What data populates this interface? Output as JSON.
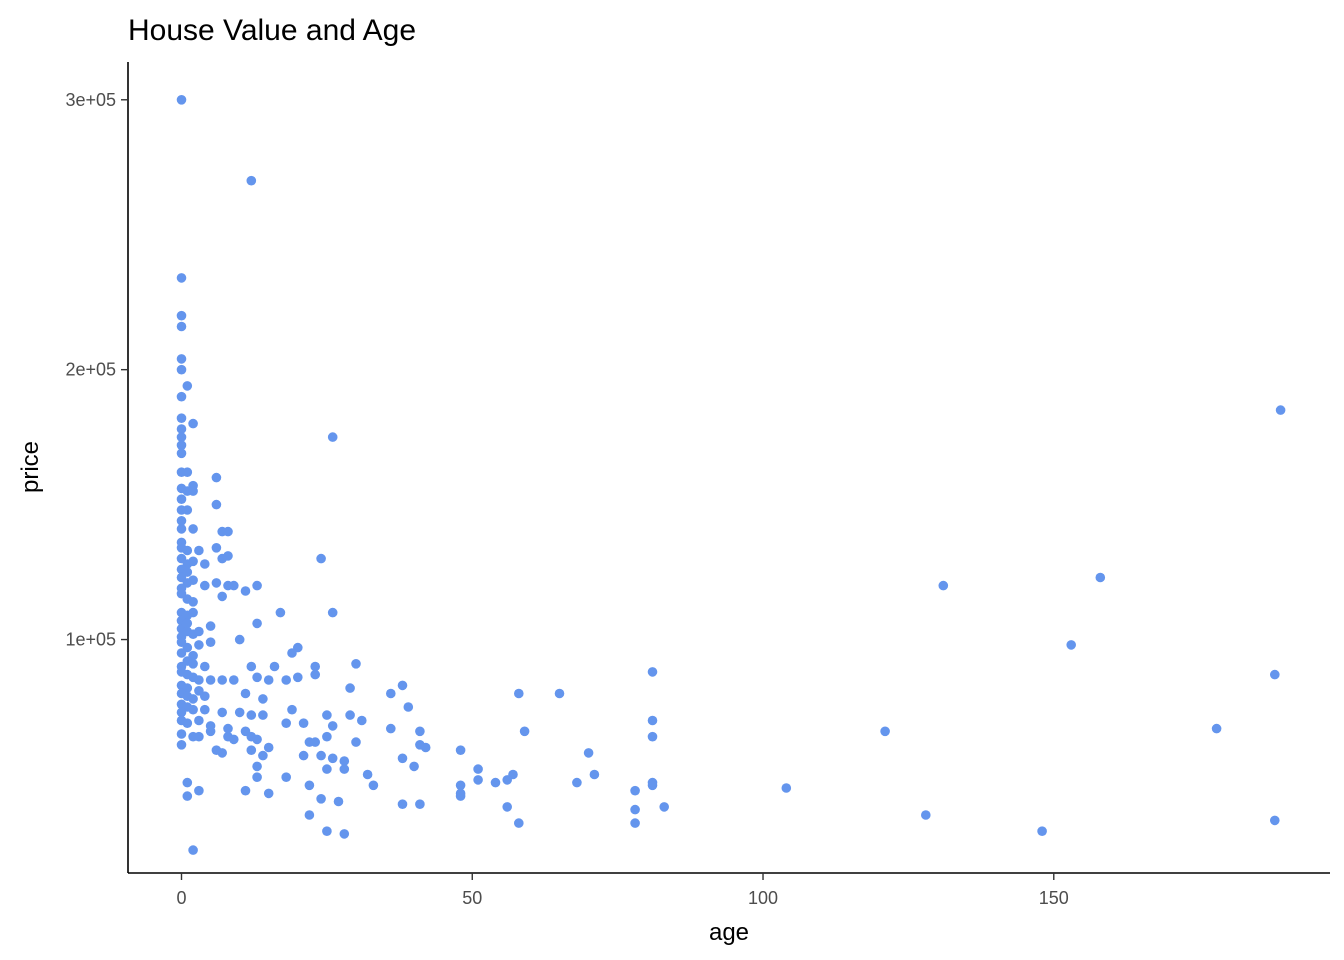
{
  "chart_data": {
    "type": "scatter",
    "title": "House Value and Age",
    "xlabel": "age",
    "ylabel": "price",
    "xlim": [
      -9.2,
      197.5
    ],
    "ylim": [
      13500,
      314000
    ],
    "x_ticks": [
      0,
      50,
      100,
      150
    ],
    "y_ticks": [
      100000,
      200000,
      300000
    ],
    "x_tick_labels": [
      "0",
      "50",
      "100",
      "150"
    ],
    "y_tick_labels": [
      "1e+05",
      "2e+05",
      "3e+05"
    ],
    "grid": false,
    "point_color": "#6495ED",
    "points": [
      [
        0,
        300000
      ],
      [
        12,
        270000
      ],
      [
        0,
        234000
      ],
      [
        0,
        220000
      ],
      [
        0,
        216000
      ],
      [
        0,
        204000
      ],
      [
        0,
        200000
      ],
      [
        1,
        194000
      ],
      [
        0,
        190000
      ],
      [
        0,
        182000
      ],
      [
        2,
        180000
      ],
      [
        0,
        178000
      ],
      [
        0,
        175000
      ],
      [
        0,
        172000
      ],
      [
        0,
        169000
      ],
      [
        26,
        175000
      ],
      [
        0,
        162000
      ],
      [
        1,
        162000
      ],
      [
        6,
        160000
      ],
      [
        2,
        157000
      ],
      [
        0,
        156000
      ],
      [
        1,
        155000
      ],
      [
        2,
        155000
      ],
      [
        0,
        152000
      ],
      [
        6,
        150000
      ],
      [
        0,
        148000
      ],
      [
        1,
        148000
      ],
      [
        0,
        144000
      ],
      [
        0,
        141000
      ],
      [
        2,
        141000
      ],
      [
        7,
        140000
      ],
      [
        8,
        140000
      ],
      [
        0,
        136000
      ],
      [
        0,
        134000
      ],
      [
        1,
        133000
      ],
      [
        3,
        133000
      ],
      [
        6,
        134000
      ],
      [
        8,
        131000
      ],
      [
        0,
        130000
      ],
      [
        1,
        128000
      ],
      [
        2,
        129000
      ],
      [
        4,
        128000
      ],
      [
        7,
        130000
      ],
      [
        24,
        130000
      ],
      [
        0,
        126000
      ],
      [
        1,
        125000
      ],
      [
        0,
        123000
      ],
      [
        2,
        122000
      ],
      [
        1,
        121000
      ],
      [
        4,
        120000
      ],
      [
        0,
        119000
      ],
      [
        6,
        121000
      ],
      [
        8,
        120000
      ],
      [
        9,
        120000
      ],
      [
        13,
        120000
      ],
      [
        11,
        118000
      ],
      [
        0,
        117000
      ],
      [
        1,
        115000
      ],
      [
        7,
        116000
      ],
      [
        2,
        114000
      ],
      [
        0,
        110000
      ],
      [
        1,
        109000
      ],
      [
        2,
        110000
      ],
      [
        17,
        110000
      ],
      [
        26,
        110000
      ],
      [
        0,
        107000
      ],
      [
        1,
        106000
      ],
      [
        5,
        105000
      ],
      [
        13,
        106000
      ],
      [
        0,
        104000
      ],
      [
        1,
        103000
      ],
      [
        2,
        102000
      ],
      [
        3,
        103000
      ],
      [
        0,
        101000
      ],
      [
        10,
        100000
      ],
      [
        0,
        99000
      ],
      [
        3,
        98000
      ],
      [
        1,
        97000
      ],
      [
        5,
        99000
      ],
      [
        20,
        97000
      ],
      [
        19,
        95000
      ],
      [
        0,
        95000
      ],
      [
        2,
        94000
      ],
      [
        1,
        92000
      ],
      [
        0,
        90000
      ],
      [
        2,
        91000
      ],
      [
        4,
        90000
      ],
      [
        12,
        90000
      ],
      [
        16,
        90000
      ],
      [
        23,
        90000
      ],
      [
        30,
        91000
      ],
      [
        0,
        88000
      ],
      [
        1,
        87000
      ],
      [
        2,
        86000
      ],
      [
        3,
        85000
      ],
      [
        5,
        85000
      ],
      [
        7,
        85000
      ],
      [
        9,
        85000
      ],
      [
        13,
        86000
      ],
      [
        15,
        85000
      ],
      [
        18,
        85000
      ],
      [
        20,
        86000
      ],
      [
        23,
        87000
      ],
      [
        0,
        83000
      ],
      [
        1,
        82000
      ],
      [
        3,
        81000
      ],
      [
        0,
        80000
      ],
      [
        1,
        79000
      ],
      [
        2,
        78000
      ],
      [
        4,
        79000
      ],
      [
        11,
        80000
      ],
      [
        14,
        78000
      ],
      [
        38,
        83000
      ],
      [
        36,
        80000
      ],
      [
        58,
        80000
      ],
      [
        65,
        80000
      ],
      [
        81,
        88000
      ],
      [
        29,
        82000
      ],
      [
        0,
        76000
      ],
      [
        1,
        75000
      ],
      [
        0,
        73000
      ],
      [
        2,
        74000
      ],
      [
        4,
        74000
      ],
      [
        7,
        73000
      ],
      [
        10,
        73000
      ],
      [
        12,
        72000
      ],
      [
        14,
        72000
      ],
      [
        19,
        74000
      ],
      [
        25,
        72000
      ],
      [
        39,
        75000
      ],
      [
        0,
        70000
      ],
      [
        1,
        69000
      ],
      [
        3,
        70000
      ],
      [
        5,
        68000
      ],
      [
        8,
        67000
      ],
      [
        11,
        66000
      ],
      [
        18,
        69000
      ],
      [
        21,
        69000
      ],
      [
        26,
        68000
      ],
      [
        29,
        72000
      ],
      [
        31,
        70000
      ],
      [
        36,
        67000
      ],
      [
        41,
        66000
      ],
      [
        59,
        66000
      ],
      [
        81,
        70000
      ],
      [
        0,
        65000
      ],
      [
        2,
        64000
      ],
      [
        3,
        64000
      ],
      [
        5,
        66000
      ],
      [
        8,
        64000
      ],
      [
        9,
        63000
      ],
      [
        12,
        64000
      ],
      [
        13,
        63000
      ],
      [
        15,
        60000
      ],
      [
        22,
        62000
      ],
      [
        23,
        62000
      ],
      [
        25,
        64000
      ],
      [
        30,
        62000
      ],
      [
        41,
        61000
      ],
      [
        42,
        60000
      ],
      [
        81,
        64000
      ],
      [
        121,
        66000
      ],
      [
        0,
        61000
      ],
      [
        6,
        59000
      ],
      [
        7,
        58000
      ],
      [
        12,
        59000
      ],
      [
        14,
        57000
      ],
      [
        21,
        57000
      ],
      [
        24,
        57000
      ],
      [
        26,
        56000
      ],
      [
        28,
        55000
      ],
      [
        38,
        56000
      ],
      [
        48,
        59000
      ],
      [
        70,
        58000
      ],
      [
        178,
        67000
      ],
      [
        13,
        53000
      ],
      [
        25,
        52000
      ],
      [
        28,
        52000
      ],
      [
        40,
        53000
      ],
      [
        51,
        52000
      ],
      [
        57,
        50000
      ],
      [
        32,
        50000
      ],
      [
        71,
        50000
      ],
      [
        18,
        49000
      ],
      [
        13,
        49000
      ],
      [
        54,
        47000
      ],
      [
        56,
        48000
      ],
      [
        51,
        48000
      ],
      [
        68,
        47000
      ],
      [
        1,
        47000
      ],
      [
        22,
        46000
      ],
      [
        33,
        46000
      ],
      [
        48,
        46000
      ],
      [
        81,
        47000
      ],
      [
        81,
        46000
      ],
      [
        104,
        45000
      ],
      [
        3,
        44000
      ],
      [
        11,
        44000
      ],
      [
        15,
        43000
      ],
      [
        1,
        42000
      ],
      [
        48,
        42000
      ],
      [
        48,
        43000
      ],
      [
        78,
        44000
      ],
      [
        83,
        38000
      ],
      [
        24,
        41000
      ],
      [
        27,
        40000
      ],
      [
        38,
        39000
      ],
      [
        41,
        39000
      ],
      [
        56,
        38000
      ],
      [
        78,
        37000
      ],
      [
        22,
        35000
      ],
      [
        78,
        32000
      ],
      [
        58,
        32000
      ],
      [
        128,
        35000
      ],
      [
        188,
        33000
      ],
      [
        25,
        29000
      ],
      [
        28,
        28000
      ],
      [
        148,
        29000
      ],
      [
        2,
        22000
      ],
      [
        131,
        120000
      ],
      [
        158,
        123000
      ],
      [
        153,
        98000
      ],
      [
        188,
        87000
      ],
      [
        189,
        185000
      ]
    ]
  }
}
